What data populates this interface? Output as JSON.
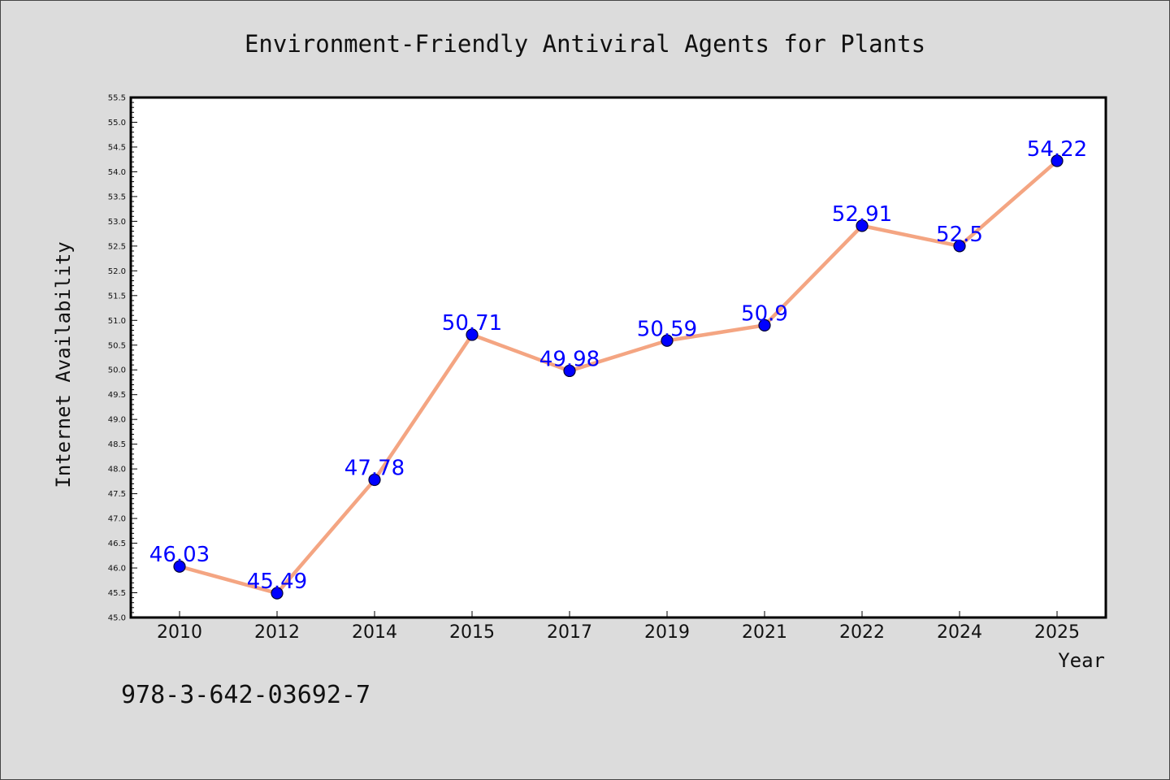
{
  "chart_data": {
    "type": "line",
    "title": "Environment-Friendly Antiviral Agents for Plants",
    "xlabel": "Year",
    "ylabel": "Internet Availability",
    "categories": [
      "2010",
      "2012",
      "2014",
      "2015",
      "2017",
      "2019",
      "2021",
      "2022",
      "2024",
      "2025"
    ],
    "values": [
      46.03,
      45.49,
      47.78,
      50.71,
      49.98,
      50.59,
      50.9,
      52.91,
      52.5,
      54.22
    ],
    "data_labels": [
      "46.03",
      "45.49",
      "47.78",
      "50.71",
      "49.98",
      "50.59",
      "50.9",
      "52.91",
      "52.5",
      "54.22"
    ],
    "ylim": [
      45.0,
      55.5
    ],
    "y_ticks": [
      "45.0",
      "45.5",
      "46.0",
      "46.5",
      "47.0",
      "47.5",
      "48.0",
      "48.5",
      "49.0",
      "49.5",
      "50.0",
      "50.5",
      "51.0",
      "51.5",
      "52.0",
      "52.5",
      "53.0",
      "53.5",
      "54.0",
      "54.5",
      "55.0",
      "55.5"
    ],
    "grid": false,
    "line_color": "#f4a582",
    "marker_color": "#0000ff",
    "label_color": "#0000ff"
  },
  "footer_text": "978-3-642-03692-7"
}
